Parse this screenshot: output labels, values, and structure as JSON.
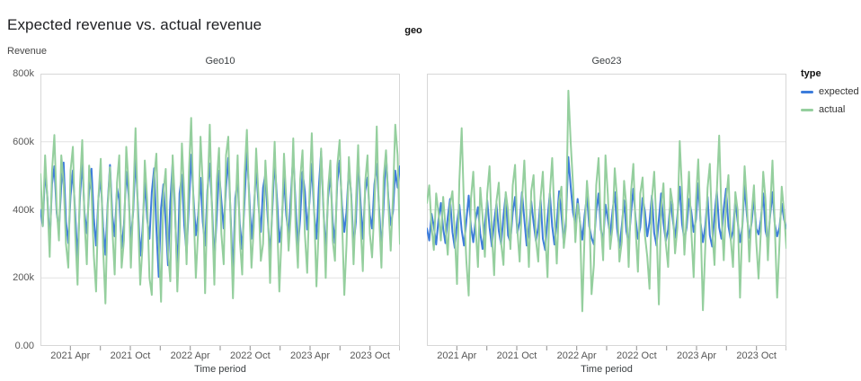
{
  "title": "Expected revenue vs. actual revenue",
  "facet_field_label": "geo",
  "colors": {
    "expected": "#3d7cdb",
    "actual": "#95cf9e",
    "gridline": "#e2e2e2",
    "plot_border": "#d7d7d7",
    "tick_mark": "#8f8f8f"
  },
  "y_axis": {
    "title": "Revenue",
    "tick_labels": [
      "800k",
      "600k",
      "400k",
      "200k",
      "0.00"
    ]
  },
  "x_axis": {
    "title": "Time period",
    "tick_labels": [
      "2021 Apr",
      "2021 Oct",
      "2022 Apr",
      "2022 Oct",
      "2023 Apr",
      "2023 Oct"
    ],
    "tick_pos_pct": [
      8.33,
      25.0,
      41.67,
      58.33,
      75.0,
      91.67
    ],
    "minor_tick_pos_pct": [
      8.33,
      16.67,
      25.0,
      33.33,
      41.67,
      50.0,
      58.33,
      66.67,
      75.0,
      83.33,
      91.67,
      100.0
    ]
  },
  "legend": {
    "title": "type",
    "items": [
      {
        "label": "expected",
        "color": "#3d7cdb"
      },
      {
        "label": "actual",
        "color": "#95cf9e"
      }
    ]
  },
  "chart_data": [
    {
      "type": "line",
      "facet": "Geo10",
      "title": "Geo10",
      "xlabel": "Time period",
      "ylabel": "Revenue",
      "x_range": [
        "2021 Jan",
        "2023 Dec"
      ],
      "x_unit": "week",
      "ylim_k": [
        0,
        800
      ],
      "values_unit": "thousands of revenue (k)",
      "grid": "horizontal-only",
      "series": [
        {
          "name": "expected",
          "color": "#3d7cdb",
          "values_k": [
            400,
            352,
            515,
            438,
            300,
            476,
            528,
            390,
            341,
            472,
            539,
            367,
            302,
            441,
            516,
            388,
            252,
            430,
            545,
            392,
            331,
            458,
            521,
            376,
            295,
            433,
            497,
            351,
            268,
            418,
            532,
            383,
            322,
            464,
            428,
            287,
            356,
            512,
            443,
            306,
            395,
            553,
            416,
            265,
            338,
            485,
            374,
            315,
            452,
            522,
            345,
            203,
            405,
            475,
            362,
            237,
            424,
            541,
            393,
            214,
            448,
            503,
            355,
            272,
            416,
            562,
            435,
            325,
            385,
            494,
            365,
            295,
            458,
            536,
            405,
            253,
            375,
            515,
            428,
            345,
            465,
            553,
            385,
            205,
            435,
            487,
            355,
            285,
            425,
            572,
            445,
            315,
            395,
            524,
            415,
            335,
            465,
            505,
            375,
            265,
            405,
            545,
            435,
            305,
            355,
            495,
            385,
            325,
            445,
            565,
            415,
            285,
            375,
            512,
            455,
            342,
            425,
            535,
            395,
            315,
            465,
            572,
            405,
            275,
            435,
            505,
            365,
            302,
            482,
            545,
            415,
            335,
            395,
            525,
            445,
            295,
            365,
            556,
            425,
            315,
            455,
            495,
            385,
            345,
            475,
            535,
            405,
            285,
            415,
            565,
            435,
            355,
            395,
            515,
            465,
            528
          ]
        },
        {
          "name": "actual",
          "color": "#95cf9e",
          "values_k": [
            505,
            352,
            560,
            430,
            262,
            515,
            620,
            405,
            310,
            560,
            480,
            300,
            230,
            515,
            585,
            330,
            180,
            465,
            605,
            370,
            240,
            530,
            455,
            265,
            160,
            435,
            550,
            290,
            125,
            405,
            525,
            345,
            210,
            480,
            560,
            230,
            310,
            585,
            475,
            230,
            420,
            640,
            390,
            180,
            290,
            545,
            430,
            200,
            150,
            495,
            565,
            310,
            130,
            450,
            520,
            280,
            190,
            560,
            420,
            160,
            330,
            595,
            445,
            240,
            510,
            670,
            415,
            200,
            340,
            615,
            475,
            155,
            430,
            650,
            390,
            180,
            480,
            582,
            330,
            240,
            560,
            615,
            370,
            140,
            380,
            560,
            310,
            210,
            505,
            635,
            420,
            230,
            350,
            580,
            440,
            250,
            300,
            545,
            415,
            185,
            440,
            600,
            380,
            160,
            330,
            565,
            430,
            280,
            390,
            610,
            350,
            230,
            490,
            575,
            330,
            215,
            450,
            625,
            405,
            175,
            350,
            580,
            420,
            200,
            460,
            545,
            310,
            250,
            530,
            605,
            380,
            150,
            300,
            555,
            435,
            240,
            420,
            590,
            360,
            220,
            480,
            560,
            330,
            260,
            410,
            645,
            380,
            230,
            495,
            575,
            420,
            280,
            440,
            650,
            560,
            300
          ]
        }
      ]
    },
    {
      "type": "line",
      "facet": "Geo23",
      "title": "Geo23",
      "xlabel": "Time period",
      "ylabel": "Revenue",
      "x_range": [
        "2021 Jan",
        "2023 Dec"
      ],
      "x_unit": "week",
      "ylim_k": [
        0,
        800
      ],
      "values_unit": "thousands of revenue (k)",
      "grid": "horizontal-only",
      "series": [
        {
          "name": "expected",
          "color": "#3d7cdb",
          "values_k": [
            345,
            310,
            388,
            352,
            298,
            372,
            420,
            345,
            302,
            378,
            432,
            335,
            288,
            362,
            415,
            340,
            295,
            368,
            442,
            352,
            305,
            372,
            408,
            330,
            285,
            355,
            428,
            348,
            292,
            365,
            418,
            338,
            298,
            382,
            445,
            325,
            305,
            392,
            438,
            332,
            365,
            452,
            372,
            295,
            338,
            425,
            362,
            308,
            348,
            432,
            315,
            282,
            375,
            448,
            352,
            298,
            362,
            455,
            385,
            302,
            372,
            555,
            468,
            392,
            358,
            432,
            365,
            312,
            385,
            442,
            352,
            318,
            298,
            395,
            448,
            342,
            308,
            415,
            372,
            325,
            395,
            452,
            345,
            288,
            352,
            428,
            338,
            302,
            388,
            462,
            372,
            315,
            348,
            435,
            395,
            322,
            365,
            442,
            332,
            295,
            372,
            448,
            362,
            308,
            342,
            425,
            372,
            318,
            382,
            468,
            358,
            312,
            348,
            432,
            395,
            335,
            372,
            478,
            362,
            305,
            352,
            438,
            325,
            292,
            385,
            455,
            348,
            315,
            405,
            462,
            352,
            312,
            338,
            428,
            365,
            305,
            352,
            472,
            382,
            318,
            362,
            435,
            345,
            328,
            372,
            448,
            338,
            308,
            382,
            452,
            358,
            322,
            348,
            418,
            372,
            345
          ]
        },
        {
          "name": "actual",
          "color": "#95cf9e",
          "values_k": [
            420,
            472,
            350,
            282,
            448,
            392,
            310,
            438,
            352,
            268,
            415,
            455,
            330,
            182,
            485,
            640,
            402,
            250,
            148,
            432,
            512,
            348,
            232,
            465,
            382,
            262,
            448,
            528,
            330,
            208,
            425,
            480,
            302,
            238,
            452,
            398,
            285,
            472,
            532,
            342,
            248,
            428,
            545,
            372,
            232,
            455,
            502,
            312,
            248,
            435,
            512,
            332,
            202,
            448,
            552,
            382,
            242,
            425,
            468,
            288,
            352,
            750,
            598,
            472,
            305,
            418,
            365,
            102,
            332,
            485,
            398,
            152,
            238,
            472,
            552,
            362,
            252,
            560,
            445,
            285,
            348,
            522,
            432,
            248,
            305,
            485,
            412,
            232,
            452,
            535,
            338,
            218,
            448,
            495,
            325,
            262,
            168,
            432,
            512,
            348,
            122,
            405,
            478,
            302,
            232,
            462,
            415,
            272,
            348,
            602,
            452,
            268,
            382,
            512,
            338,
            202,
            432,
            548,
            365,
            105,
            288,
            465,
            535,
            342,
            238,
            455,
            618,
            392,
            252,
            428,
            502,
            312,
            232,
            452,
            398,
            142,
            362,
            528,
            415,
            248,
            388,
            472,
            305,
            198,
            338,
            512,
            428,
            252,
            398,
            545,
            352,
            142,
            302,
            468,
            395,
            288
          ]
        }
      ]
    }
  ]
}
